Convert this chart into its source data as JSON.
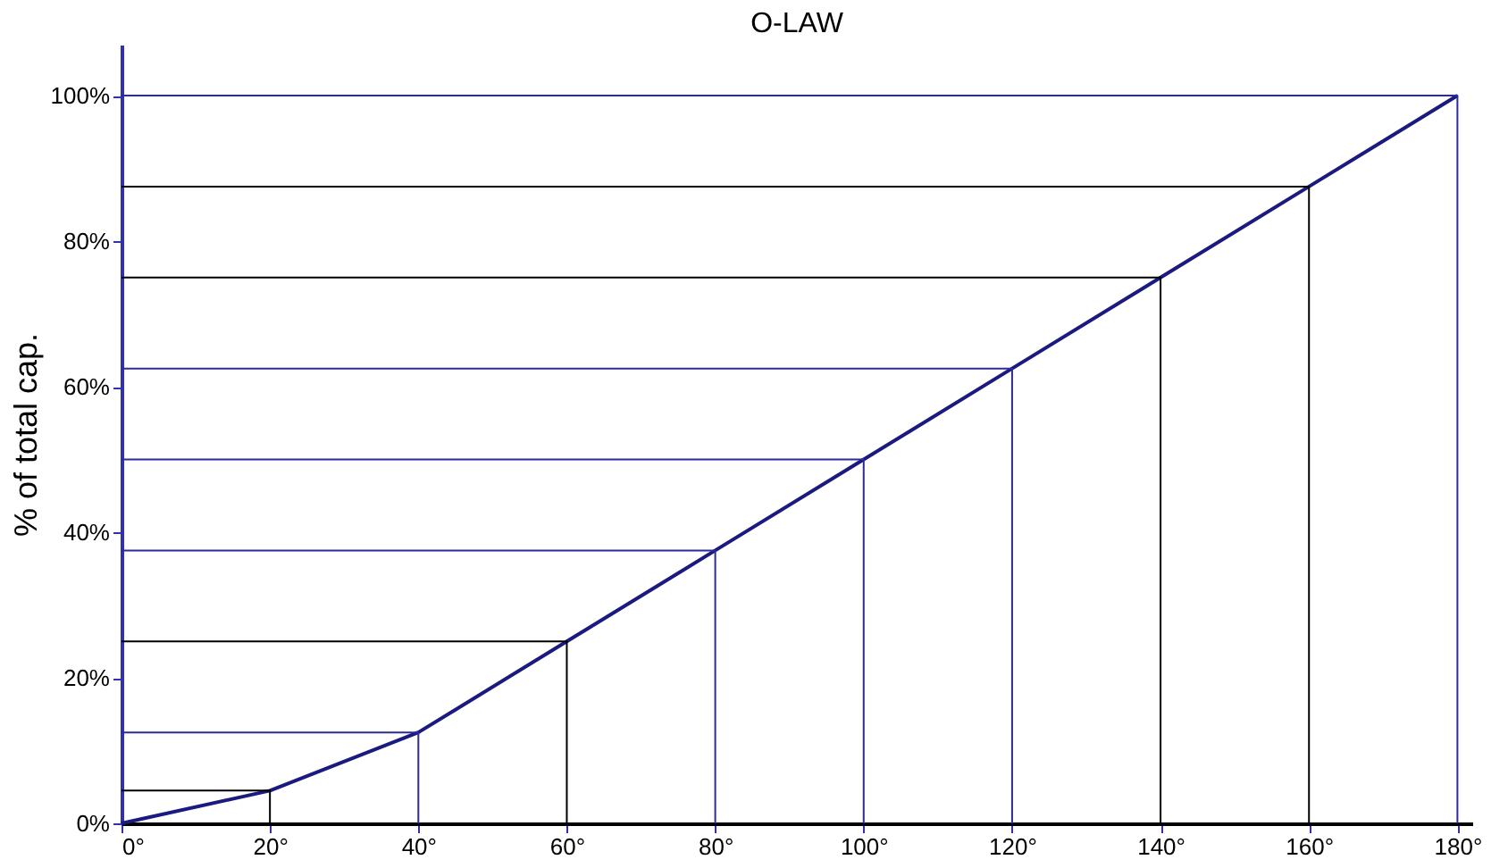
{
  "chart_data": {
    "type": "line",
    "title": "O-LAW",
    "ylabel": "% of total cap.",
    "x": [
      0,
      20,
      40,
      60,
      80,
      100,
      120,
      140,
      160,
      180
    ],
    "series": [
      {
        "color": "#1a1a80",
        "values": [
          0,
          4.5,
          12.5,
          25,
          37.5,
          50,
          62.5,
          75,
          87.5,
          100
        ]
      },
      {
        "color": "#000000",
        "x": [
          0,
          20,
          20
        ],
        "values": [
          4.5,
          4.5,
          0
        ]
      },
      {
        "color": "#2b2b9a",
        "x": [
          0,
          40,
          40
        ],
        "values": [
          12.5,
          12.5,
          0
        ]
      },
      {
        "color": "#000000",
        "x": [
          0,
          60,
          60
        ],
        "values": [
          25,
          25,
          0
        ]
      },
      {
        "color": "#2b2b9a",
        "x": [
          0,
          80,
          80
        ],
        "values": [
          37.5,
          37.5,
          0
        ]
      },
      {
        "color": "#2b2b9a",
        "x": [
          0,
          100,
          100
        ],
        "values": [
          50,
          50,
          0
        ]
      },
      {
        "color": "#2b2b9a",
        "x": [
          0,
          120,
          120
        ],
        "values": [
          62.5,
          62.5,
          0
        ]
      },
      {
        "color": "#000000",
        "x": [
          0,
          140,
          140
        ],
        "values": [
          75,
          75,
          0
        ]
      },
      {
        "color": "#000000",
        "x": [
          0,
          160,
          160
        ],
        "values": [
          87.5,
          87.5,
          0
        ]
      },
      {
        "color": "#2b2b9a",
        "x": [
          0,
          180,
          180
        ],
        "values": [
          100,
          100,
          0
        ]
      }
    ],
    "xlim": [
      0,
      182
    ],
    "ylim": [
      0,
      107
    ],
    "xticks": [
      {
        "value": 0,
        "label": "0°"
      },
      {
        "value": 20,
        "label": "20°"
      },
      {
        "value": 40,
        "label": "40°"
      },
      {
        "value": 60,
        "label": "60°"
      },
      {
        "value": 80,
        "label": "80°"
      },
      {
        "value": 100,
        "label": "100°"
      },
      {
        "value": 120,
        "label": "120°"
      },
      {
        "value": 140,
        "label": "140°"
      },
      {
        "value": 160,
        "label": "160°"
      },
      {
        "value": 180,
        "label": "180°"
      }
    ],
    "yticks": [
      {
        "value": 0,
        "label": "0%"
      },
      {
        "value": 20,
        "label": "20%"
      },
      {
        "value": 40,
        "label": "40%"
      },
      {
        "value": 60,
        "label": "60%"
      },
      {
        "value": 80,
        "label": "80%"
      },
      {
        "value": 100,
        "label": "100%"
      }
    ],
    "marker": "none",
    "line_style": "solid"
  }
}
